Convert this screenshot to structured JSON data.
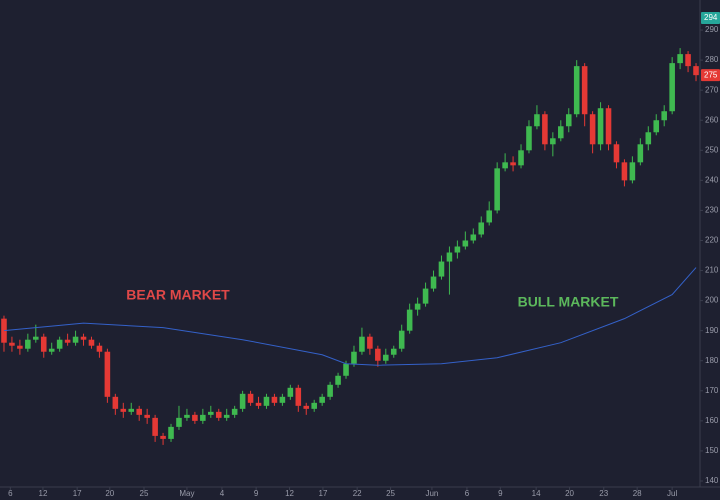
{
  "chart_data": {
    "type": "candlestick",
    "up_color": "#3fb950",
    "down_color": "#e53935",
    "ma_color": "#3461c9",
    "background": "#1e2030",
    "ylim": [
      138,
      300
    ],
    "yticks": [
      140,
      150,
      160,
      170,
      180,
      190,
      200,
      210,
      220,
      230,
      240,
      250,
      260,
      270,
      280,
      290
    ],
    "xlim": [
      -0.5,
      87.5
    ],
    "xticks": [
      {
        "value": 0.8,
        "label": "6"
      },
      {
        "value": 4.9,
        "label": "12"
      },
      {
        "value": 9.2,
        "label": "17"
      },
      {
        "value": 13.3,
        "label": "20"
      },
      {
        "value": 17.6,
        "label": "25"
      },
      {
        "value": 23,
        "label": "May"
      },
      {
        "value": 27.4,
        "label": "4"
      },
      {
        "value": 31.7,
        "label": "9"
      },
      {
        "value": 35.9,
        "label": "12"
      },
      {
        "value": 40.1,
        "label": "17"
      },
      {
        "value": 44.4,
        "label": "22"
      },
      {
        "value": 48.6,
        "label": "25"
      },
      {
        "value": 53.8,
        "label": "Jun"
      },
      {
        "value": 58.2,
        "label": "6"
      },
      {
        "value": 62.4,
        "label": "9"
      },
      {
        "value": 66.9,
        "label": "14"
      },
      {
        "value": 71.1,
        "label": "20"
      },
      {
        "value": 75.4,
        "label": "23"
      },
      {
        "value": 79.6,
        "label": "28"
      },
      {
        "value": 84,
        "label": "Jul"
      }
    ],
    "open": [
      194,
      186,
      185,
      184,
      187,
      188,
      183,
      184,
      187,
      186,
      188,
      187,
      185,
      183,
      168,
      164,
      163,
      164,
      162,
      161,
      155,
      154,
      158,
      161,
      162,
      160,
      162,
      163,
      161,
      162,
      164,
      169,
      166,
      165,
      168,
      166,
      168,
      171,
      165,
      164,
      166,
      168,
      172,
      175,
      179,
      183,
      188,
      184,
      180,
      182,
      184,
      190,
      197,
      199,
      204,
      208,
      213,
      216,
      218,
      220,
      222,
      226,
      230,
      244,
      246,
      245,
      250,
      258,
      262,
      252,
      254,
      258,
      262,
      278,
      262,
      252,
      264,
      252,
      246,
      240,
      246,
      252,
      256,
      260,
      263,
      279,
      282,
      278
    ],
    "high": [
      195,
      188,
      187,
      189,
      192,
      189,
      186,
      188,
      189,
      190,
      189,
      188,
      186,
      184,
      169,
      166,
      166,
      165,
      164,
      162,
      156,
      159,
      165,
      164,
      163,
      164,
      165,
      164,
      164,
      165,
      170,
      170,
      168,
      169,
      169,
      169,
      172,
      172,
      166,
      167,
      169,
      173,
      176,
      180,
      185,
      191,
      189,
      185,
      184,
      185,
      192,
      199,
      201,
      206,
      210,
      215,
      218,
      220,
      223,
      224,
      228,
      233,
      246,
      249,
      248,
      252,
      260,
      265,
      263,
      256,
      260,
      264,
      280,
      279,
      263,
      266,
      265,
      253,
      247,
      248,
      254,
      258,
      262,
      265,
      281,
      284,
      283,
      279
    ],
    "low": [
      183,
      183,
      182,
      183,
      186,
      181,
      182,
      183,
      185,
      185,
      185,
      184,
      181,
      166,
      162,
      161,
      162,
      160,
      159,
      153,
      152,
      153,
      157,
      160,
      159,
      159,
      161,
      160,
      160,
      161,
      163,
      165,
      164,
      164,
      165,
      165,
      167,
      163,
      162,
      163,
      165,
      167,
      171,
      174,
      178,
      182,
      182,
      178,
      179,
      181,
      183,
      189,
      195,
      198,
      203,
      207,
      202,
      214,
      217,
      219,
      221,
      225,
      229,
      243,
      243,
      244,
      249,
      257,
      250,
      248,
      253,
      256,
      261,
      258,
      249,
      250,
      250,
      244,
      238,
      239,
      245,
      250,
      255,
      258,
      262,
      277,
      276,
      273
    ],
    "close": [
      186,
      185,
      184,
      187,
      188,
      183,
      184,
      187,
      186,
      188,
      187,
      185,
      183,
      168,
      164,
      163,
      164,
      162,
      161,
      155,
      154,
      158,
      161,
      162,
      160,
      162,
      163,
      161,
      162,
      164,
      169,
      166,
      165,
      168,
      166,
      168,
      171,
      165,
      164,
      166,
      168,
      172,
      175,
      179,
      183,
      188,
      184,
      180,
      182,
      184,
      190,
      197,
      199,
      204,
      208,
      213,
      216,
      218,
      220,
      222,
      226,
      230,
      244,
      246,
      245,
      250,
      258,
      262,
      252,
      254,
      258,
      262,
      278,
      262,
      252,
      264,
      252,
      246,
      240,
      246,
      252,
      256,
      260,
      263,
      279,
      282,
      278,
      275
    ],
    "ma": {
      "x": [
        0,
        10,
        20,
        30,
        40,
        43,
        47,
        55,
        62,
        70,
        78,
        84,
        87
      ],
      "values": [
        190,
        192.5,
        191,
        187,
        182,
        179,
        178.5,
        179,
        181,
        186,
        194,
        202,
        211
      ]
    },
    "price_tags": [
      {
        "value": 294,
        "color": "#26a69a"
      },
      {
        "value": 275,
        "color": "#e53935"
      }
    ],
    "annotations": [
      {
        "text": "BEAR MARKET",
        "color": "#e04848"
      },
      {
        "text": "BULL MARKET",
        "color": "#5cb85c"
      }
    ]
  }
}
